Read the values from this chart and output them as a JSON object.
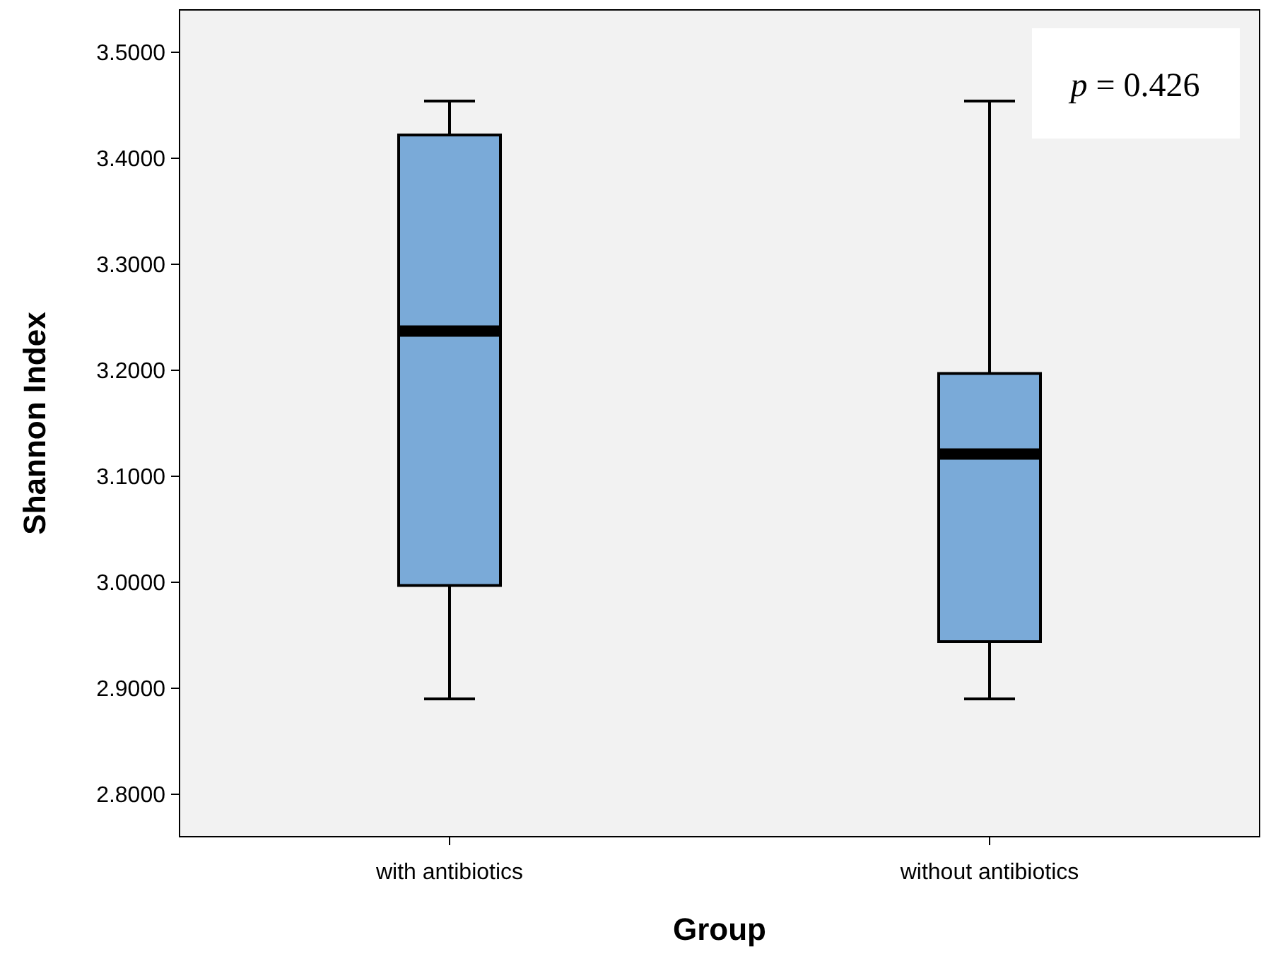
{
  "chart_data": {
    "type": "box",
    "xlabel": "Group",
    "ylabel": "Shannon Index",
    "categories": [
      "with antibiotics",
      "without antibiotics"
    ],
    "color": "#7aaad8",
    "boxes": [
      {
        "low": 2.89,
        "q1": 2.997,
        "median": 3.237,
        "q3": 3.422,
        "high": 3.454
      },
      {
        "low": 2.89,
        "q1": 2.944,
        "median": 3.121,
        "q3": 3.197,
        "high": 3.454
      }
    ],
    "ylim": [
      2.76,
      3.54
    ],
    "yticks": [
      {
        "value": 2.8,
        "label": "2.8000"
      },
      {
        "value": 2.9,
        "label": "2.9000"
      },
      {
        "value": 3.0,
        "label": "3.0000"
      },
      {
        "value": 3.1,
        "label": "3.1000"
      },
      {
        "value": 3.2,
        "label": "3.2000"
      },
      {
        "value": 3.3,
        "label": "3.3000"
      },
      {
        "value": 3.4,
        "label": "3.4000"
      },
      {
        "value": 3.5,
        "label": "3.5000"
      }
    ],
    "annotations": [
      "p = 0.426"
    ],
    "grid": false
  }
}
